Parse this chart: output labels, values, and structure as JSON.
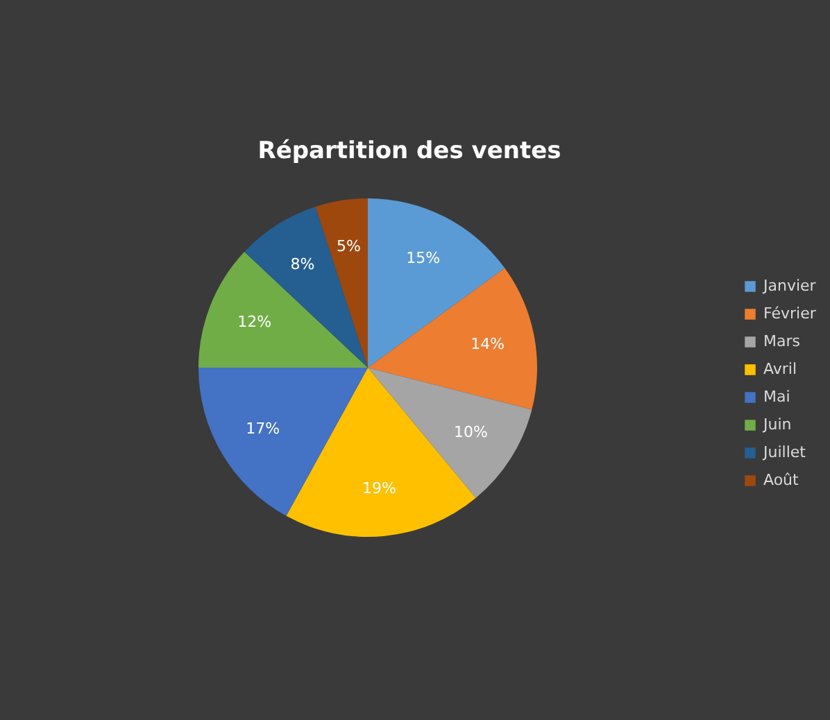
{
  "chart_data": {
    "type": "pie",
    "title": "Répartition des ventes",
    "categories": [
      "Janvier",
      "Février",
      "Mars",
      "Avril",
      "Mai",
      "Juin",
      "Juillet",
      "Août"
    ],
    "values": [
      15,
      14,
      10,
      19,
      17,
      12,
      8,
      5
    ],
    "colors": [
      "#5b9bd5",
      "#ed7d31",
      "#a5a5a5",
      "#ffc000",
      "#4472c4",
      "#70ad47",
      "#255e91",
      "#9e480e"
    ],
    "value_labels": [
      "15%",
      "14%",
      "10%",
      "19%",
      "17%",
      "12%",
      "8%",
      "5%"
    ],
    "legend": "right"
  }
}
